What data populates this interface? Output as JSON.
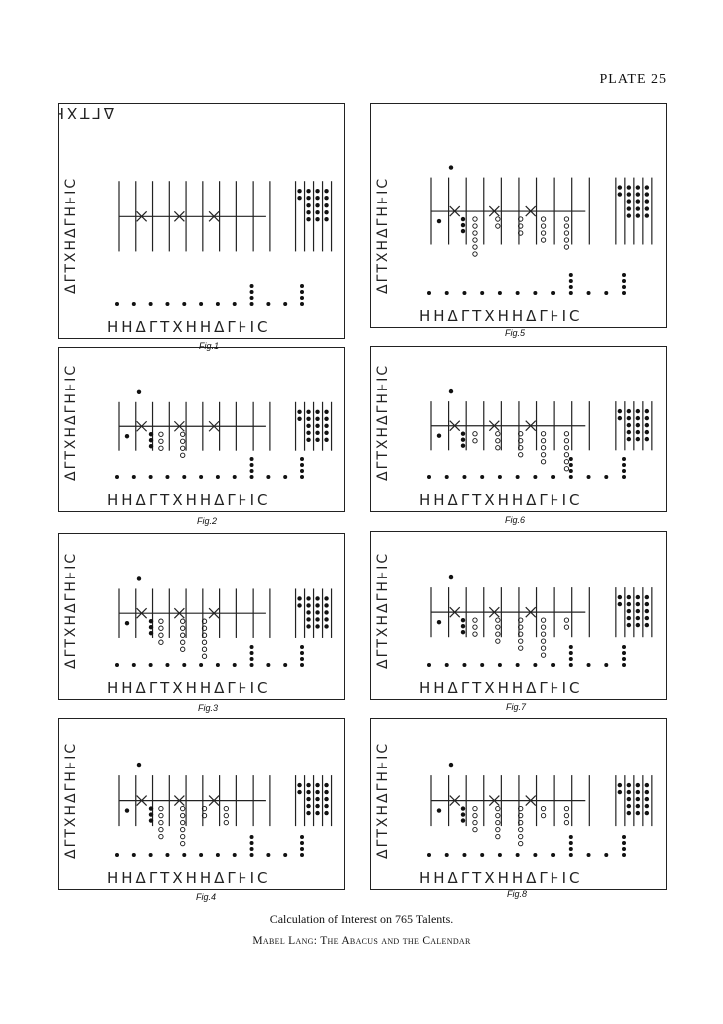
{
  "plate": "PLATE 25",
  "panels": [
    {
      "caption": "Fig.1"
    },
    {
      "caption": "Fig.5"
    },
    {
      "caption": "Fig.2"
    },
    {
      "caption": "Fig.6"
    },
    {
      "caption": "Fig.3"
    },
    {
      "caption": "Fig.7"
    },
    {
      "caption": "Fig.4"
    },
    {
      "caption": "Fig.8"
    }
  ],
  "symbols": {
    "top": "ΔΓΤΧΗΔΓΗ⊦ΙC",
    "side": "ΔΓΤΧΗΔΓΗ⊦ΙC",
    "bottom": "ΗΗΔΓΤΧΗΗΔΓ⊦ΙC"
  },
  "caption": "Calculation of Interest on 765 Talents.",
  "byline": "Mabel Lang: The Abacus and the Calendar"
}
